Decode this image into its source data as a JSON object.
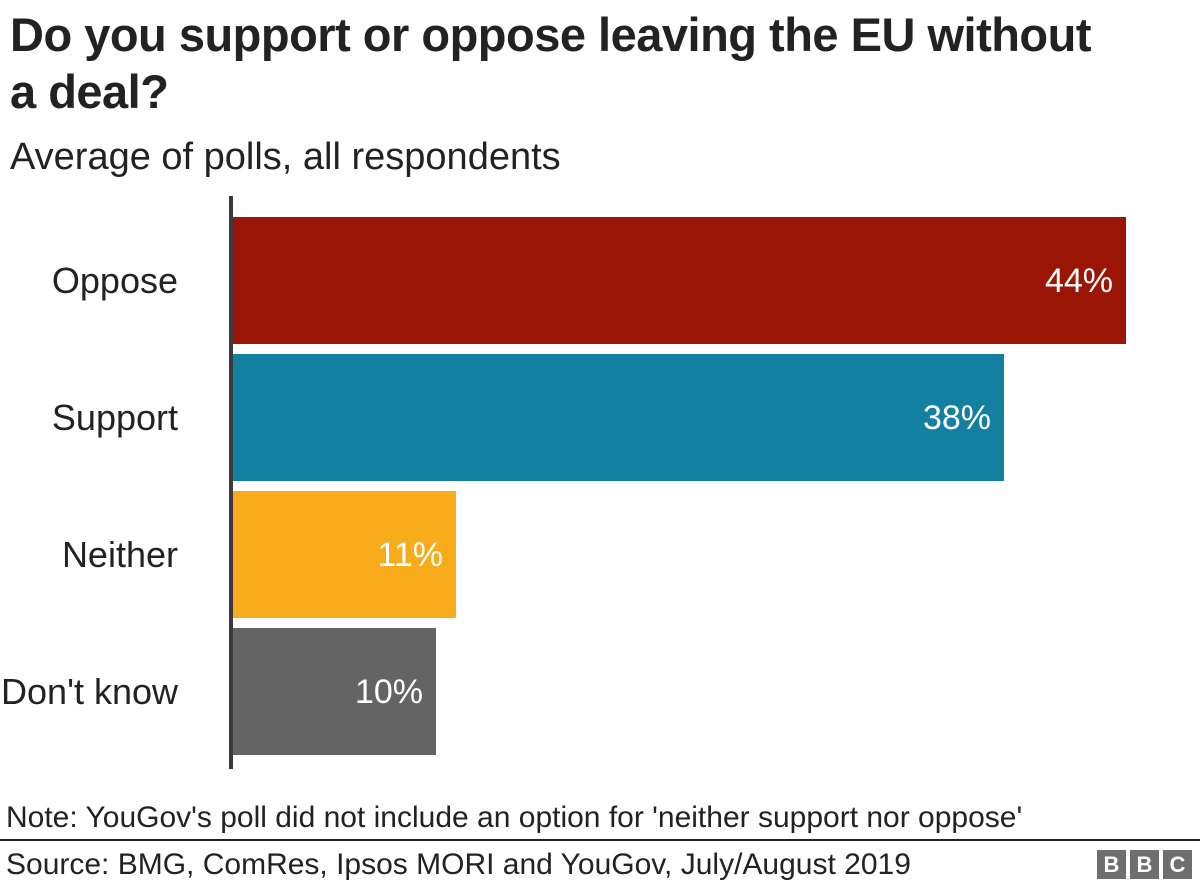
{
  "header": {
    "title": "Do you support or oppose leaving the EU without a deal?",
    "subtitle": "Average of polls, all respondents"
  },
  "chart_data": {
    "type": "bar",
    "orientation": "horizontal",
    "title": "Do you support or oppose leaving the EU without a deal?",
    "subtitle": "Average of polls, all respondents",
    "categories": [
      "Oppose",
      "Support",
      "Neither",
      "Don't know"
    ],
    "values": [
      44,
      38,
      11,
      10
    ],
    "value_labels": [
      "44%",
      "38%",
      "11%",
      "10%"
    ],
    "unit": "%",
    "xlim": [
      0,
      44
    ],
    "axis_ticks_visible": false,
    "grid": false,
    "legend": "none",
    "bar_colors": [
      "#9a1506",
      "#1380a1",
      "#f8ab1b",
      "#646464"
    ],
    "value_label_color": "#ffffff"
  },
  "colors": {
    "oppose_red": "#9a1506",
    "support_blue": "#1380a1",
    "neither_orange": "#f8ab1b",
    "dont_know_gray": "#646464",
    "axis_line": "#3a3a3a",
    "text": "#222222",
    "logo_gray": "#6e6e6e"
  },
  "footer": {
    "note": "Note: YouGov's poll did not include an option for 'neither support nor oppose'",
    "source": "Source: BMG, ComRes, Ipsos MORI and YouGov, July/August 2019",
    "logo_letters": [
      "B",
      "B",
      "C"
    ]
  }
}
